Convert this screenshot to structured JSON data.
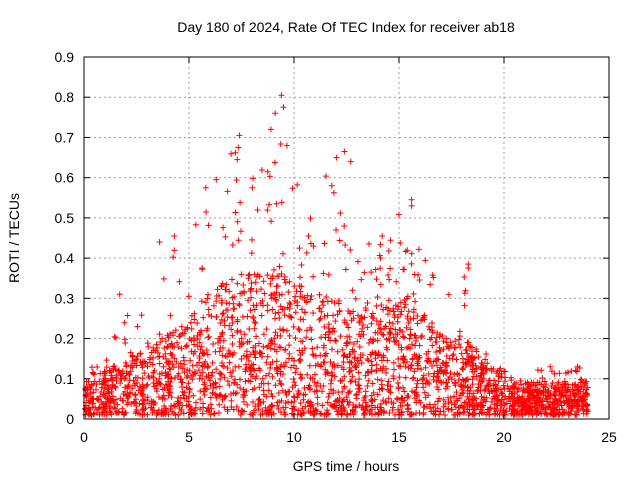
{
  "chart_data": {
    "type": "scatter",
    "title": "Day 180 of 2024, Rate Of TEC Index for receiver ab18",
    "xlabel": "GPS time / hours",
    "ylabel": "ROTI / TECUs",
    "xlim": [
      0,
      25
    ],
    "ylim": [
      0,
      0.9
    ],
    "xticks": [
      0,
      5,
      10,
      15,
      20,
      25
    ],
    "yticks": [
      0,
      0.1,
      0.2,
      0.3,
      0.4,
      0.5,
      0.6,
      0.7,
      0.8,
      0.9
    ],
    "ytick_labels": [
      "0",
      "0.1",
      "0.2",
      "0.3",
      "0.4",
      "0.5",
      "0.6",
      "0.7",
      "0.8",
      "0.9"
    ],
    "grid": true,
    "marker": "+",
    "color": "#ff0000",
    "envelope": {
      "x": [
        0,
        1,
        2,
        3,
        4,
        5,
        6,
        7,
        8,
        9,
        10,
        11,
        12,
        13,
        14,
        15,
        16,
        17,
        18,
        19,
        20,
        21,
        22,
        23,
        24
      ],
      "upper": [
        0.12,
        0.18,
        0.28,
        0.3,
        0.42,
        0.45,
        0.58,
        0.7,
        0.62,
        0.8,
        0.62,
        0.58,
        0.66,
        0.44,
        0.44,
        0.55,
        0.46,
        0.3,
        0.38,
        0.2,
        0.12,
        0.1,
        0.14,
        0.13,
        0.13
      ],
      "typical": [
        0.06,
        0.08,
        0.1,
        0.12,
        0.15,
        0.17,
        0.22,
        0.25,
        0.25,
        0.26,
        0.24,
        0.22,
        0.21,
        0.19,
        0.2,
        0.22,
        0.2,
        0.15,
        0.14,
        0.1,
        0.07,
        0.06,
        0.06,
        0.06,
        0.06
      ]
    },
    "highlight_points": [
      {
        "x": 9.4,
        "y": 0.805
      },
      {
        "x": 9.5,
        "y": 0.775
      },
      {
        "x": 9.1,
        "y": 0.76
      },
      {
        "x": 8.9,
        "y": 0.72
      },
      {
        "x": 7.4,
        "y": 0.705
      },
      {
        "x": 7.35,
        "y": 0.675
      },
      {
        "x": 7.3,
        "y": 0.645
      },
      {
        "x": 12.4,
        "y": 0.665
      },
      {
        "x": 12.7,
        "y": 0.64
      },
      {
        "x": 11.8,
        "y": 0.58
      },
      {
        "x": 6.3,
        "y": 0.595
      },
      {
        "x": 5.8,
        "y": 0.575
      },
      {
        "x": 15.6,
        "y": 0.545
      },
      {
        "x": 15.6,
        "y": 0.53
      },
      {
        "x": 18.3,
        "y": 0.385
      },
      {
        "x": 18.3,
        "y": 0.375
      },
      {
        "x": 14.2,
        "y": 0.455
      },
      {
        "x": 3.6,
        "y": 0.44
      },
      {
        "x": 4.3,
        "y": 0.455
      },
      {
        "x": 1.7,
        "y": 0.31
      },
      {
        "x": 22.2,
        "y": 0.13
      },
      {
        "x": 23.5,
        "y": 0.13
      }
    ]
  }
}
